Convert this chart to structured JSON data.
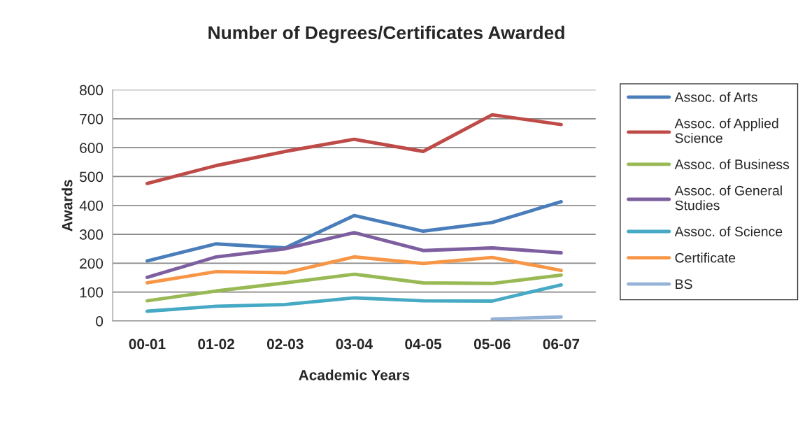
{
  "chart_data": {
    "type": "line",
    "title": "Number of Degrees/Certificates Awarded",
    "xlabel": "Academic Years",
    "ylabel": "Awards",
    "categories": [
      "00-01",
      "01-02",
      "02-03",
      "03-04",
      "04-05",
      "05-06",
      "06-07"
    ],
    "series": [
      {
        "name": "Assoc. of Arts",
        "color": "#4a7ebb",
        "values": [
          208,
          267,
          253,
          365,
          311,
          341,
          413
        ]
      },
      {
        "name": "Assoc. of Applied Science",
        "color": "#be4b48",
        "values": [
          476,
          538,
          587,
          629,
          587,
          714,
          680
        ]
      },
      {
        "name": "Assoc. of Business",
        "color": "#98b954",
        "values": [
          70,
          104,
          132,
          162,
          132,
          130,
          159
        ]
      },
      {
        "name": "Assoc. of General Studies",
        "color": "#7d5fa0",
        "values": [
          151,
          222,
          250,
          306,
          244,
          253,
          236
        ]
      },
      {
        "name": "Assoc. of Science",
        "color": "#46aac5",
        "values": [
          34,
          51,
          57,
          80,
          70,
          69,
          125
        ]
      },
      {
        "name": "Certificate",
        "color": "#f79646",
        "values": [
          132,
          171,
          167,
          222,
          199,
          220,
          175
        ]
      },
      {
        "name": "BS",
        "color": "#95b3d7",
        "values": [
          null,
          null,
          null,
          null,
          null,
          7,
          14
        ]
      }
    ],
    "ylim": [
      0,
      800
    ],
    "yticks": [
      0,
      100,
      200,
      300,
      400,
      500,
      600,
      700,
      800
    ],
    "grid": "y",
    "legend": "right",
    "marker": "none",
    "line_style": "solid"
  }
}
